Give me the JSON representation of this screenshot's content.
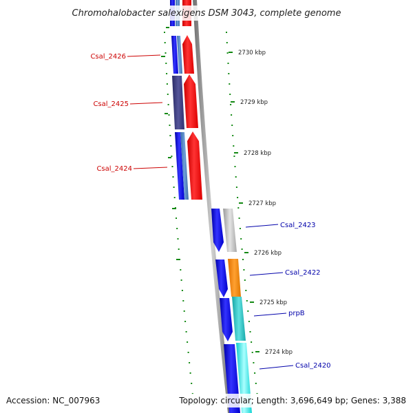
{
  "title": "Chromohalobacter salexigens DSM 3043, complete genome",
  "footer": {
    "accession": "Accession: NC_007963",
    "info": "Topology: circular; Length: 3,696,649 bp; Genes: 3,388"
  },
  "colors": {
    "label_left": "#cc0000",
    "label_right": "#0000aa",
    "backbone": "#8a8a8a",
    "tick": "#118811"
  },
  "scale_labels": [
    "2730 kbp",
    "2729 kbp",
    "2728 kbp",
    "2727 kbp",
    "2726 kbp",
    "2725 kbp",
    "2724 kbp"
  ],
  "gene_labels_left": [
    "Csal_2426",
    "Csal_2425",
    "Csal_2424"
  ],
  "gene_labels_right": [
    "Csal_2423",
    "Csal_2422",
    "prpB",
    "Csal_2420"
  ]
}
